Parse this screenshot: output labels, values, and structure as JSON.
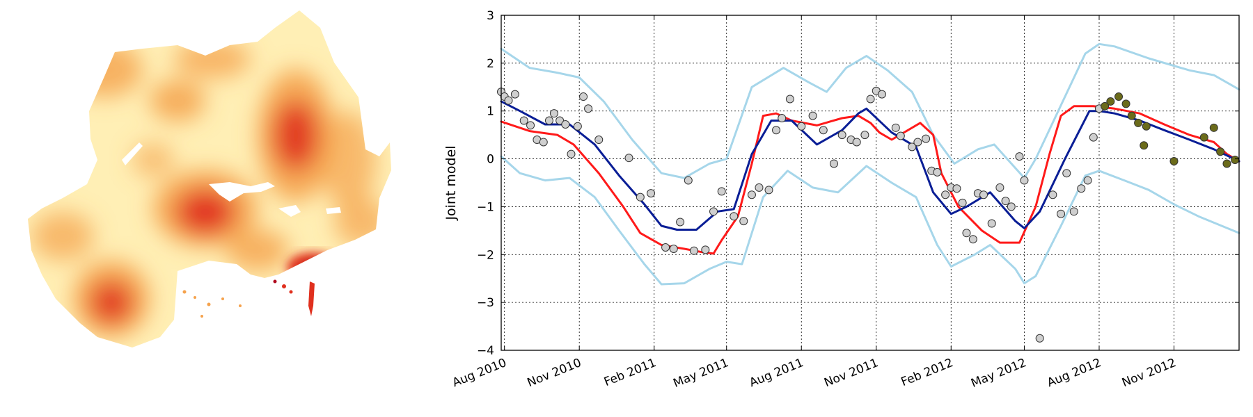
{
  "map": {
    "colors": {
      "low": "#ffefb5",
      "mid": "#f5a24c",
      "high": "#e0301e",
      "peak": "#b00a1e"
    }
  },
  "chart_data": {
    "type": "line",
    "xlabel": "",
    "ylabel": "Joint model",
    "ylim": [
      -4,
      3
    ],
    "yticks": [
      3,
      2,
      1,
      0,
      -1,
      -2,
      -3,
      -4
    ],
    "xlim": [
      "2010-07-28",
      "2013-01-20"
    ],
    "xticks": [
      {
        "date": "2010-08-01",
        "label": "Aug 2010"
      },
      {
        "date": "2010-11-01",
        "label": "Nov 2010"
      },
      {
        "date": "2011-02-01",
        "label": "Feb 2011"
      },
      {
        "date": "2011-05-01",
        "label": "May 2011"
      },
      {
        "date": "2011-08-01",
        "label": "Aug 2011"
      },
      {
        "date": "2011-11-01",
        "label": "Nov 2011"
      },
      {
        "date": "2012-02-01",
        "label": "Feb 2012"
      },
      {
        "date": "2012-05-01",
        "label": "May 2012"
      },
      {
        "date": "2012-08-01",
        "label": "Aug 2012"
      },
      {
        "date": "2012-11-01",
        "label": "Nov 2012"
      }
    ],
    "grid": true,
    "colors": {
      "mean": "#0a1e96",
      "red": "#ff1a1a",
      "band": "#a6d6ea",
      "obs_fill": "#cfcfcf",
      "new_fill": "#6b6b1a"
    },
    "series": [
      {
        "role": "mean",
        "points": [
          [
            "2010-07-28",
            1.2
          ],
          [
            "2010-08-20",
            1.0
          ],
          [
            "2010-09-20",
            0.72
          ],
          [
            "2010-10-20",
            0.72
          ],
          [
            "2010-11-20",
            0.3
          ],
          [
            "2010-12-20",
            -0.35
          ],
          [
            "2011-01-20",
            -0.95
          ],
          [
            "2011-02-10",
            -1.4
          ],
          [
            "2011-03-01",
            -1.48
          ],
          [
            "2011-03-25",
            -1.48
          ],
          [
            "2011-04-20",
            -1.1
          ],
          [
            "2011-05-10",
            -1.05
          ],
          [
            "2011-06-01",
            0.1
          ],
          [
            "2011-06-25",
            0.8
          ],
          [
            "2011-07-20",
            0.8
          ],
          [
            "2011-08-20",
            0.3
          ],
          [
            "2011-09-20",
            0.6
          ],
          [
            "2011-10-10",
            0.95
          ],
          [
            "2011-10-20",
            1.05
          ],
          [
            "2011-11-20",
            0.55
          ],
          [
            "2011-12-20",
            0.25
          ],
          [
            "2012-01-10",
            -0.7
          ],
          [
            "2012-02-01",
            -1.15
          ],
          [
            "2012-02-20",
            -1.0
          ],
          [
            "2012-03-20",
            -0.7
          ],
          [
            "2012-04-20",
            -1.3
          ],
          [
            "2012-05-01",
            -1.45
          ],
          [
            "2012-05-20",
            -1.1
          ],
          [
            "2012-06-20",
            0.0
          ],
          [
            "2012-07-20",
            1.0
          ],
          [
            "2012-08-01",
            1.0
          ],
          [
            "2012-08-20",
            0.95
          ],
          [
            "2012-09-20",
            0.8
          ],
          [
            "2012-10-20",
            0.6
          ],
          [
            "2012-11-20",
            0.4
          ],
          [
            "2012-12-20",
            0.2
          ],
          [
            "2013-01-20",
            -0.05
          ]
        ]
      },
      {
        "role": "red",
        "points": [
          [
            "2010-07-28",
            0.78
          ],
          [
            "2010-09-01",
            0.58
          ],
          [
            "2010-10-05",
            0.5
          ],
          [
            "2010-10-25",
            0.3
          ],
          [
            "2010-11-25",
            -0.3
          ],
          [
            "2010-12-25",
            -1.0
          ],
          [
            "2011-01-15",
            -1.55
          ],
          [
            "2011-02-10",
            -1.8
          ],
          [
            "2011-03-10",
            -1.88
          ],
          [
            "2011-04-01",
            -1.95
          ],
          [
            "2011-04-15",
            -1.98
          ],
          [
            "2011-04-25",
            -1.7
          ],
          [
            "2011-05-15",
            -1.2
          ],
          [
            "2011-06-01",
            -0.1
          ],
          [
            "2011-06-15",
            0.9
          ],
          [
            "2011-07-01",
            0.95
          ],
          [
            "2011-07-20",
            0.8
          ],
          [
            "2011-08-20",
            0.7
          ],
          [
            "2011-09-20",
            0.85
          ],
          [
            "2011-10-10",
            0.9
          ],
          [
            "2011-10-25",
            0.75
          ],
          [
            "2011-11-05",
            0.55
          ],
          [
            "2011-11-20",
            0.4
          ],
          [
            "2011-12-10",
            0.6
          ],
          [
            "2011-12-25",
            0.75
          ],
          [
            "2012-01-10",
            0.5
          ],
          [
            "2012-01-20",
            -0.3
          ],
          [
            "2012-02-10",
            -1.0
          ],
          [
            "2012-03-10",
            -1.5
          ],
          [
            "2012-04-01",
            -1.75
          ],
          [
            "2012-04-25",
            -1.75
          ],
          [
            "2012-05-15",
            -1.0
          ],
          [
            "2012-06-01",
            0.1
          ],
          [
            "2012-06-15",
            0.9
          ],
          [
            "2012-07-01",
            1.1
          ],
          [
            "2012-07-25",
            1.1
          ],
          [
            "2012-08-20",
            1.05
          ],
          [
            "2012-09-20",
            0.95
          ],
          [
            "2012-10-20",
            0.72
          ],
          [
            "2012-11-20",
            0.5
          ],
          [
            "2012-12-20",
            0.35
          ],
          [
            "2013-01-05",
            0.1
          ],
          [
            "2013-01-20",
            -0.05
          ]
        ]
      },
      {
        "role": "upper",
        "points": [
          [
            "2010-07-28",
            2.3
          ],
          [
            "2010-09-01",
            1.9
          ],
          [
            "2010-10-05",
            1.8
          ],
          [
            "2010-11-01",
            1.7
          ],
          [
            "2010-12-01",
            1.2
          ],
          [
            "2011-01-05",
            0.4
          ],
          [
            "2011-02-10",
            -0.3
          ],
          [
            "2011-03-10",
            -0.4
          ],
          [
            "2011-04-10",
            -0.1
          ],
          [
            "2011-05-01",
            0.0
          ],
          [
            "2011-06-01",
            1.5
          ],
          [
            "2011-07-10",
            1.9
          ],
          [
            "2011-08-10",
            1.6
          ],
          [
            "2011-09-01",
            1.4
          ],
          [
            "2011-09-25",
            1.9
          ],
          [
            "2011-10-20",
            2.15
          ],
          [
            "2011-11-15",
            1.85
          ],
          [
            "2011-12-15",
            1.4
          ],
          [
            "2012-01-10",
            0.5
          ],
          [
            "2012-02-05",
            -0.1
          ],
          [
            "2012-03-05",
            0.2
          ],
          [
            "2012-03-25",
            0.3
          ],
          [
            "2012-05-01",
            -0.4
          ],
          [
            "2012-05-15",
            0.0
          ],
          [
            "2012-06-20",
            1.3
          ],
          [
            "2012-07-15",
            2.2
          ],
          [
            "2012-08-01",
            2.4
          ],
          [
            "2012-08-20",
            2.35
          ],
          [
            "2012-10-01",
            2.1
          ],
          [
            "2012-11-20",
            1.85
          ],
          [
            "2012-12-20",
            1.75
          ],
          [
            "2013-01-20",
            1.45
          ]
        ]
      },
      {
        "role": "lower",
        "points": [
          [
            "2010-07-28",
            0.05
          ],
          [
            "2010-08-20",
            -0.3
          ],
          [
            "2010-09-20",
            -0.45
          ],
          [
            "2010-10-20",
            -0.4
          ],
          [
            "2010-11-20",
            -0.8
          ],
          [
            "2010-12-20",
            -1.5
          ],
          [
            "2011-01-20",
            -2.2
          ],
          [
            "2011-02-10",
            -2.62
          ],
          [
            "2011-03-10",
            -2.6
          ],
          [
            "2011-04-10",
            -2.3
          ],
          [
            "2011-05-01",
            -2.15
          ],
          [
            "2011-05-20",
            -2.2
          ],
          [
            "2011-06-15",
            -0.8
          ],
          [
            "2011-07-15",
            -0.25
          ],
          [
            "2011-08-15",
            -0.6
          ],
          [
            "2011-09-15",
            -0.7
          ],
          [
            "2011-10-20",
            -0.15
          ],
          [
            "2011-11-20",
            -0.5
          ],
          [
            "2011-12-20",
            -0.8
          ],
          [
            "2012-01-15",
            -1.8
          ],
          [
            "2012-02-01",
            -2.25
          ],
          [
            "2012-03-01",
            -2.0
          ],
          [
            "2012-03-20",
            -1.8
          ],
          [
            "2012-04-20",
            -2.3
          ],
          [
            "2012-05-01",
            -2.6
          ],
          [
            "2012-05-15",
            -2.45
          ],
          [
            "2012-06-15",
            -1.4
          ],
          [
            "2012-07-15",
            -0.35
          ],
          [
            "2012-08-01",
            -0.25
          ],
          [
            "2012-09-01",
            -0.45
          ],
          [
            "2012-10-01",
            -0.65
          ],
          [
            "2012-11-01",
            -0.95
          ],
          [
            "2012-12-01",
            -1.2
          ],
          [
            "2013-01-20",
            -1.55
          ]
        ]
      }
    ],
    "observations": [
      [
        "2010-07-28",
        1.4
      ],
      [
        "2010-08-01",
        1.3
      ],
      [
        "2010-08-06",
        1.22
      ],
      [
        "2010-08-14",
        1.35
      ],
      [
        "2010-08-25",
        0.8
      ],
      [
        "2010-09-02",
        0.7
      ],
      [
        "2010-09-10",
        0.4
      ],
      [
        "2010-09-18",
        0.35
      ],
      [
        "2010-09-25",
        0.8
      ],
      [
        "2010-10-01",
        0.95
      ],
      [
        "2010-10-08",
        0.8
      ],
      [
        "2010-10-15",
        0.72
      ],
      [
        "2010-10-22",
        0.1
      ],
      [
        "2010-10-30",
        0.68
      ],
      [
        "2010-11-06",
        1.3
      ],
      [
        "2010-11-12",
        1.05
      ],
      [
        "2010-11-25",
        0.4
      ],
      [
        "2011-01-01",
        0.02
      ],
      [
        "2011-01-15",
        -0.8
      ],
      [
        "2011-01-28",
        -0.72
      ],
      [
        "2011-02-15",
        -1.85
      ],
      [
        "2011-02-25",
        -1.88
      ],
      [
        "2011-03-05",
        -1.32
      ],
      [
        "2011-03-15",
        -0.45
      ],
      [
        "2011-03-22",
        -1.92
      ],
      [
        "2011-04-05",
        -1.9
      ],
      [
        "2011-04-15",
        -1.1
      ],
      [
        "2011-04-25",
        -0.68
      ],
      [
        "2011-05-10",
        -1.2
      ],
      [
        "2011-05-22",
        -1.3
      ],
      [
        "2011-06-01",
        -0.75
      ],
      [
        "2011-06-10",
        -0.6
      ],
      [
        "2011-06-22",
        -0.65
      ],
      [
        "2011-07-01",
        0.6
      ],
      [
        "2011-07-08",
        0.85
      ],
      [
        "2011-07-18",
        1.25
      ],
      [
        "2011-08-01",
        0.68
      ],
      [
        "2011-08-15",
        0.9
      ],
      [
        "2011-08-28",
        0.6
      ],
      [
        "2011-09-10",
        -0.1
      ],
      [
        "2011-09-20",
        0.5
      ],
      [
        "2011-10-01",
        0.4
      ],
      [
        "2011-10-08",
        0.35
      ],
      [
        "2011-10-18",
        0.5
      ],
      [
        "2011-10-25",
        1.25
      ],
      [
        "2011-11-01",
        1.42
      ],
      [
        "2011-11-08",
        1.35
      ],
      [
        "2011-11-25",
        0.65
      ],
      [
        "2011-12-01",
        0.48
      ],
      [
        "2011-12-15",
        0.25
      ],
      [
        "2011-12-22",
        0.35
      ],
      [
        "2012-01-01",
        0.42
      ],
      [
        "2012-01-08",
        -0.25
      ],
      [
        "2012-01-15",
        -0.28
      ],
      [
        "2012-01-25",
        -0.75
      ],
      [
        "2012-02-01",
        -0.6
      ],
      [
        "2012-02-08",
        -0.62
      ],
      [
        "2012-02-15",
        -0.92
      ],
      [
        "2012-02-20",
        -1.55
      ],
      [
        "2012-02-28",
        -1.68
      ],
      [
        "2012-03-05",
        -0.72
      ],
      [
        "2012-03-12",
        -0.75
      ],
      [
        "2012-03-22",
        -1.35
      ],
      [
        "2012-04-01",
        -0.6
      ],
      [
        "2012-04-08",
        -0.88
      ],
      [
        "2012-04-15",
        -1.0
      ],
      [
        "2012-04-25",
        0.05
      ],
      [
        "2012-05-01",
        -0.45
      ],
      [
        "2012-05-20",
        -3.75
      ],
      [
        "2012-06-05",
        -0.75
      ],
      [
        "2012-06-15",
        -1.15
      ],
      [
        "2012-06-22",
        -0.3
      ],
      [
        "2012-07-01",
        -1.1
      ],
      [
        "2012-07-10",
        -0.62
      ],
      [
        "2012-07-18",
        -0.45
      ],
      [
        "2012-07-25",
        0.45
      ],
      [
        "2012-08-01",
        1.05
      ]
    ],
    "new_observations": [
      [
        "2012-08-08",
        1.1
      ],
      [
        "2012-08-15",
        1.2
      ],
      [
        "2012-08-25",
        1.3
      ],
      [
        "2012-09-03",
        1.15
      ],
      [
        "2012-09-10",
        0.9
      ],
      [
        "2012-09-18",
        0.75
      ],
      [
        "2012-09-25",
        0.28
      ],
      [
        "2012-09-28",
        0.68
      ],
      [
        "2012-11-01",
        -0.05
      ],
      [
        "2012-12-08",
        0.45
      ],
      [
        "2012-12-20",
        0.65
      ],
      [
        "2012-12-28",
        0.15
      ],
      [
        "2013-01-05",
        -0.1
      ],
      [
        "2013-01-15",
        -0.02
      ]
    ]
  }
}
